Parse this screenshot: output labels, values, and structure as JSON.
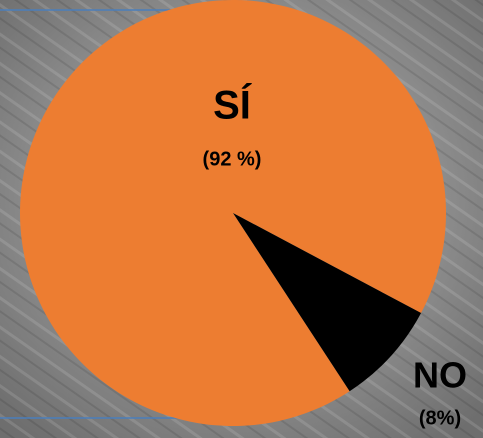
{
  "chart_data": {
    "type": "pie",
    "categories": [
      "SÍ",
      "NO"
    ],
    "values": [
      92,
      8
    ],
    "value_labels": [
      "(92 %)",
      "(8%)"
    ],
    "colors": [
      "#ED7D31",
      "#000000"
    ]
  }
}
